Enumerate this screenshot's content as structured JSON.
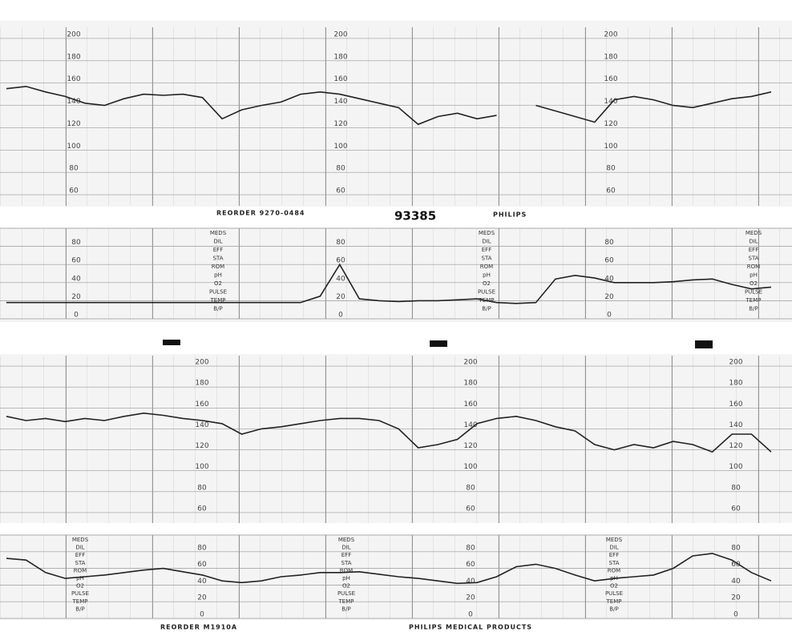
{
  "strip_texts": {
    "reorder_top": "REORDER 9270-0484",
    "serial": "93385",
    "brand": "PHILIPS",
    "reorder_bottom": "REORDER M1910A",
    "footer": "PHILIPS MEDICAL PRODUCTS"
  },
  "ua_labels": [
    "MEDS",
    "DIL",
    "EFF",
    "STA",
    "ROM",
    "pH",
    "O2",
    "PULSE",
    "TEMP",
    "B/P"
  ],
  "chart_data": [
    {
      "type": "line",
      "color": "#222222",
      "grid": true,
      "ylim": [
        50,
        210
      ],
      "yticks": [
        60,
        80,
        100,
        120,
        140,
        160,
        180,
        200
      ],
      "categories": [
        null,
        null,
        null,
        null,
        null,
        null,
        null,
        null,
        null,
        null,
        null,
        null,
        null,
        null,
        null,
        null,
        null,
        null,
        null,
        null,
        null,
        null,
        null,
        null,
        null,
        null,
        null,
        null,
        null,
        null,
        null,
        null,
        null,
        null,
        null,
        null,
        null,
        null,
        null,
        null
      ],
      "values": [
        155,
        157,
        152,
        148,
        142,
        140,
        146,
        150,
        149,
        150,
        147,
        128,
        136,
        140,
        143,
        150,
        152,
        150,
        146,
        142,
        138,
        123,
        130,
        133,
        128,
        131,
        null,
        140,
        135,
        130,
        125,
        145,
        148,
        145,
        140,
        138,
        142,
        146,
        148,
        152
      ]
    },
    {
      "type": "line",
      "color": "#222222",
      "grid": true,
      "ylim": [
        0,
        100
      ],
      "yticks": [
        0,
        20,
        40,
        60,
        80,
        100
      ],
      "categories": [
        null,
        null,
        null,
        null,
        null,
        null,
        null,
        null,
        null,
        null,
        null,
        null,
        null,
        null,
        null,
        null,
        null,
        null,
        null,
        null,
        null,
        null,
        null,
        null,
        null,
        null,
        null,
        null,
        null,
        null,
        null,
        null,
        null,
        null,
        null,
        null,
        null,
        null,
        null,
        null
      ],
      "values": [
        18,
        18,
        18,
        18,
        18,
        18,
        18,
        18,
        18,
        18,
        18,
        18,
        18,
        18,
        18,
        18,
        25,
        60,
        22,
        20,
        19,
        20,
        20,
        21,
        22,
        18,
        17,
        18,
        44,
        48,
        45,
        40,
        40,
        40,
        41,
        43,
        44,
        38,
        33,
        35
      ]
    },
    {
      "type": "line",
      "color": "#222222",
      "grid": true,
      "ylim": [
        50,
        210
      ],
      "yticks": [
        60,
        80,
        100,
        120,
        140,
        160,
        180,
        200
      ],
      "categories": [
        null,
        null,
        null,
        null,
        null,
        null,
        null,
        null,
        null,
        null,
        null,
        null,
        null,
        null,
        null,
        null,
        null,
        null,
        null,
        null,
        null,
        null,
        null,
        null,
        null,
        null,
        null,
        null,
        null,
        null,
        null,
        null,
        null,
        null,
        null,
        null,
        null,
        null,
        null,
        null
      ],
      "values": [
        152,
        148,
        150,
        147,
        150,
        148,
        152,
        155,
        153,
        150,
        148,
        145,
        135,
        140,
        142,
        145,
        148,
        150,
        150,
        148,
        140,
        122,
        125,
        130,
        145,
        150,
        152,
        148,
        142,
        138,
        125,
        120,
        125,
        122,
        128,
        125,
        118,
        135,
        135,
        118
      ]
    },
    {
      "type": "line",
      "color": "#222222",
      "grid": true,
      "ylim": [
        0,
        100
      ],
      "yticks": [
        0,
        20,
        40,
        60,
        80,
        100
      ],
      "categories": [
        null,
        null,
        null,
        null,
        null,
        null,
        null,
        null,
        null,
        null,
        null,
        null,
        null,
        null,
        null,
        null,
        null,
        null,
        null,
        null,
        null,
        null,
        null,
        null,
        null,
        null,
        null,
        null,
        null,
        null,
        null,
        null,
        null,
        null,
        null,
        null,
        null,
        null,
        null,
        null
      ],
      "values": [
        72,
        70,
        55,
        48,
        50,
        52,
        55,
        58,
        60,
        56,
        52,
        45,
        43,
        45,
        50,
        52,
        55,
        55,
        56,
        53,
        50,
        48,
        45,
        42,
        43,
        50,
        62,
        65,
        60,
        52,
        45,
        48,
        50,
        52,
        60,
        75,
        78,
        70,
        55,
        45
      ]
    }
  ]
}
